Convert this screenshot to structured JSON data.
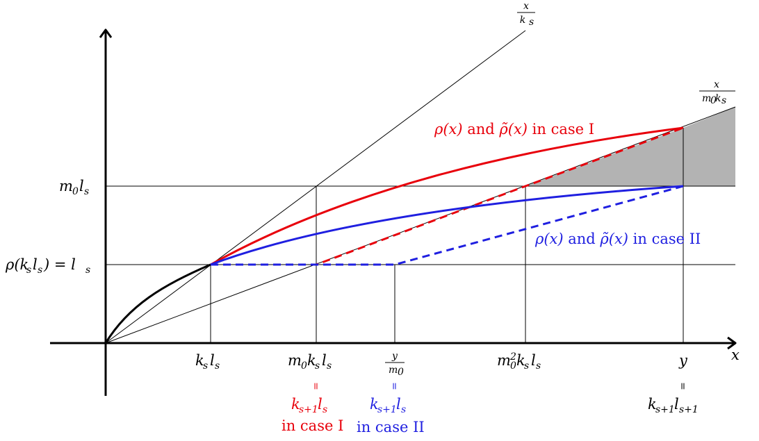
{
  "colors": {
    "case_one": "#e8000b",
    "case_two": "#1f1fe0",
    "shade": "#b3b3b3",
    "axis": "#000000"
  },
  "labels": {
    "x_axis": "x",
    "diag_top_num": "x",
    "diag_top_den": "k",
    "diag_top_den_sub": "s",
    "diag_low_num": "x",
    "diag_low_den_a": "m",
    "diag_low_den_a_sub": "0",
    "diag_low_den_b": "k",
    "diag_low_den_b_sub": "s",
    "y_m0ls_a": "m",
    "y_m0ls_a_sub": "0",
    "y_m0ls_b": "l",
    "y_m0ls_b_sub": "s",
    "y_rho": "ρ(k",
    "y_rho_sub1": "s",
    "y_rho_mid": "l",
    "y_rho_sub2": "s",
    "y_rho_eq": ") = l",
    "y_rho_sub3": "s",
    "x_ksls_a": "k",
    "x_ksls_a_sub": "s",
    "x_ksls_b": "l",
    "x_ksls_b_sub": "s",
    "x_m0ksls_a": "m",
    "x_m0ksls_a_sub": "0",
    "x_m0ksls_b": "k",
    "x_m0ksls_b_sub": "s",
    "x_m0ksls_c": "l",
    "x_m0ksls_c_sub": "s",
    "x_ym0_num": "y",
    "x_ym0_den": "m",
    "x_ym0_den_sub": "0",
    "x_m0sq_a": "m",
    "x_m0sq_a_sup": "2",
    "x_m0sq_a_sub": "0",
    "x_m0sq_b": "k",
    "x_m0sq_b_sub": "s",
    "x_m0sq_c": "l",
    "x_m0sq_c_sub": "s",
    "x_y": "y",
    "eq_sign": "=",
    "red_k": "k",
    "red_k_sub": "s+1",
    "red_l": "l",
    "red_l_sub": "s",
    "red_case": "in case I",
    "blue_k": "k",
    "blue_k_sub": "s+1",
    "blue_l": "l",
    "blue_l_sub": "s",
    "blue_case": "in case II",
    "black_k": "k",
    "black_k_sub": "s+1",
    "black_l": "l",
    "black_l_sub": "s+1",
    "case_one_rho": "ρ(x)",
    "case_one_and": " and ",
    "case_one_tilde": "ρ̃(x)",
    "case_one_tail": " in case I",
    "case_two_rho": "ρ(x)",
    "case_two_and": " and ",
    "case_two_tilde": "ρ̃(x)",
    "case_two_tail": " in case II"
  }
}
